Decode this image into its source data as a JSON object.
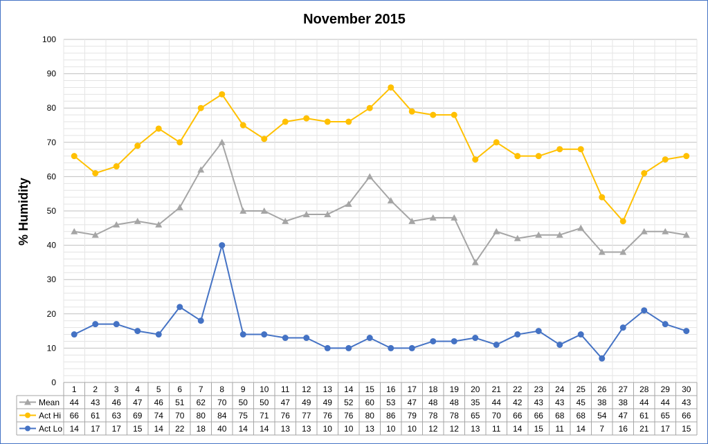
{
  "chart_data": {
    "type": "line",
    "title": "November 2015",
    "xlabel": "",
    "ylabel": "% Humidity",
    "ylim": [
      0,
      100
    ],
    "yticks": [
      0,
      10,
      20,
      30,
      40,
      50,
      60,
      70,
      80,
      90,
      100
    ],
    "grid": true,
    "legend": "data-table",
    "categories": [
      "1",
      "2",
      "3",
      "4",
      "5",
      "6",
      "7",
      "8",
      "9",
      "10",
      "11",
      "12",
      "13",
      "14",
      "15",
      "16",
      "17",
      "18",
      "19",
      "20",
      "21",
      "22",
      "23",
      "24",
      "25",
      "26",
      "27",
      "28",
      "29",
      "30"
    ],
    "series": [
      {
        "name": "Mean",
        "marker": "triangle",
        "color": "#a5a5a5",
        "values": [
          44,
          43,
          46,
          47,
          46,
          51,
          62,
          70,
          50,
          50,
          47,
          49,
          49,
          52,
          60,
          53,
          47,
          48,
          48,
          35,
          44,
          42,
          43,
          43,
          45,
          38,
          38,
          44,
          44,
          43
        ]
      },
      {
        "name": "Act Hi",
        "marker": "circle",
        "color": "#ffc000",
        "values": [
          66,
          61,
          63,
          69,
          74,
          70,
          80,
          84,
          75,
          71,
          76,
          77,
          76,
          76,
          80,
          86,
          79,
          78,
          78,
          65,
          70,
          66,
          66,
          68,
          68,
          54,
          47,
          61,
          65,
          66
        ]
      },
      {
        "name": "Act Lo",
        "marker": "circle",
        "color": "#4472c4",
        "values": [
          14,
          17,
          17,
          15,
          14,
          22,
          18,
          40,
          14,
          14,
          13,
          13,
          10,
          10,
          13,
          10,
          10,
          12,
          12,
          13,
          11,
          14,
          15,
          11,
          14,
          7,
          16,
          21,
          17,
          15
        ]
      }
    ]
  }
}
